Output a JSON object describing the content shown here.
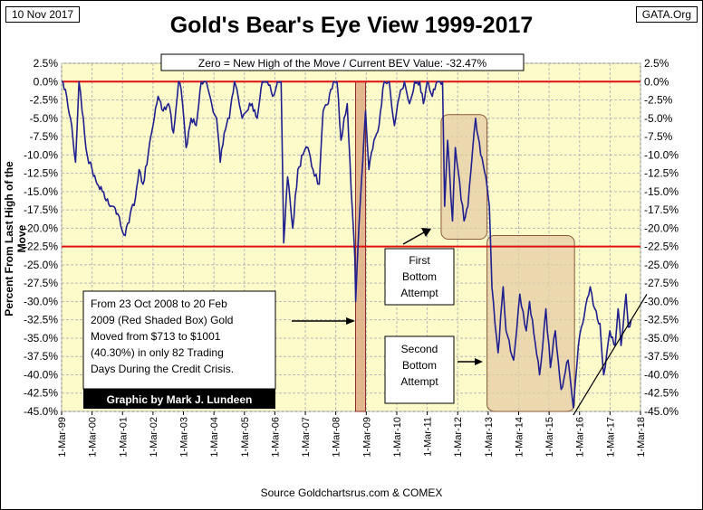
{
  "header": {
    "date": "10 Nov 2017",
    "site": "GATA.Org"
  },
  "chart_data": {
    "type": "line",
    "title": "Gold's Bear's Eye View 1999-2017",
    "ylabel": "Percent  From Last High of the Move",
    "source": "Source Goldchartsrus.com & COMEX",
    "ylim": [
      -45,
      2.5
    ],
    "xlim": [
      "1999-03-01",
      "2018-03-01"
    ],
    "grid": true,
    "y_ticks": [
      "2.5%",
      "0.0%",
      "-2.5%",
      "-5.0%",
      "-7.5%",
      "-10.0%",
      "-12.5%",
      "-15.0%",
      "-17.5%",
      "-20.0%",
      "-22.5%",
      "-25.0%",
      "-27.5%",
      "-30.0%",
      "-32.5%",
      "-35.0%",
      "-37.5%",
      "-40.0%",
      "-42.5%",
      "-45.0%"
    ],
    "x_ticks": [
      "1-Mar-99",
      "1-Mar-00",
      "1-Mar-01",
      "1-Mar-02",
      "1-Mar-03",
      "1-Mar-04",
      "1-Mar-05",
      "1-Mar-06",
      "1-Mar-07",
      "1-Mar-08",
      "1-Mar-09",
      "1-Mar-10",
      "1-Mar-11",
      "1-Mar-12",
      "1-Mar-13",
      "1-Mar-14",
      "1-Mar-15",
      "1-Mar-16",
      "1-Mar-17",
      "1-Mar-18"
    ],
    "reference_lines": [
      0,
      -22.5
    ],
    "legend_text": "Zero = New High of the Move / Current BEV Value:  -32.47%",
    "series": [
      {
        "color": "#1f1f8f",
        "points": [
          [
            "1999-03-01",
            0
          ],
          [
            "1999-05-01",
            -2
          ],
          [
            "1999-07-01",
            -6
          ],
          [
            "1999-08-15",
            -11
          ],
          [
            "1999-09-25",
            0
          ],
          [
            "1999-11-01",
            -4
          ],
          [
            "2000-01-01",
            -10
          ],
          [
            "2000-03-01",
            -12
          ],
          [
            "2000-05-01",
            -14
          ],
          [
            "2000-07-01",
            -15
          ],
          [
            "2000-09-01",
            -16
          ],
          [
            "2000-11-01",
            -17
          ],
          [
            "2001-01-01",
            -18
          ],
          [
            "2001-03-01",
            -20.5
          ],
          [
            "2001-04-01",
            -21
          ],
          [
            "2001-06-01",
            -18
          ],
          [
            "2001-08-01",
            -16
          ],
          [
            "2001-09-15",
            -12
          ],
          [
            "2001-11-01",
            -14
          ],
          [
            "2002-01-01",
            -10
          ],
          [
            "2002-03-01",
            -6
          ],
          [
            "2002-05-01",
            -2
          ],
          [
            "2002-07-01",
            -4
          ],
          [
            "2002-09-01",
            -3
          ],
          [
            "2002-11-01",
            -7
          ],
          [
            "2003-01-01",
            0
          ],
          [
            "2003-02-01",
            -1
          ],
          [
            "2003-04-01",
            -9
          ],
          [
            "2003-06-01",
            -5
          ],
          [
            "2003-08-01",
            -6
          ],
          [
            "2003-10-01",
            0
          ],
          [
            "2003-12-01",
            0
          ],
          [
            "2004-02-01",
            -3
          ],
          [
            "2004-04-01",
            -5
          ],
          [
            "2004-05-15",
            -11
          ],
          [
            "2004-07-01",
            -7
          ],
          [
            "2004-09-01",
            -5
          ],
          [
            "2004-11-01",
            0
          ],
          [
            "2004-12-15",
            -2
          ],
          [
            "2005-02-01",
            -5
          ],
          [
            "2005-04-01",
            -4
          ],
          [
            "2005-06-01",
            -3
          ],
          [
            "2005-08-01",
            -5
          ],
          [
            "2005-10-01",
            0
          ],
          [
            "2005-12-01",
            0
          ],
          [
            "2006-02-01",
            -2
          ],
          [
            "2006-04-01",
            0
          ],
          [
            "2006-05-15",
            0
          ],
          [
            "2006-06-15",
            -22
          ],
          [
            "2006-08-01",
            -13
          ],
          [
            "2006-10-01",
            -20
          ],
          [
            "2006-12-01",
            -12
          ],
          [
            "2007-02-01",
            -10
          ],
          [
            "2007-04-01",
            -9
          ],
          [
            "2007-06-01",
            -12
          ],
          [
            "2007-08-15",
            -14
          ],
          [
            "2007-10-01",
            -4
          ],
          [
            "2007-12-01",
            -3
          ],
          [
            "2008-02-01",
            0
          ],
          [
            "2008-03-15",
            0
          ],
          [
            "2008-05-01",
            -8
          ],
          [
            "2008-07-15",
            -3
          ],
          [
            "2008-09-01",
            -15
          ],
          [
            "2008-10-15",
            -24
          ],
          [
            "2008-10-24",
            -30
          ],
          [
            "2008-12-01",
            -20
          ],
          [
            "2009-02-20",
            -4
          ],
          [
            "2009-04-01",
            -12
          ],
          [
            "2009-06-01",
            -8
          ],
          [
            "2009-08-01",
            -6
          ],
          [
            "2009-10-01",
            0
          ],
          [
            "2009-12-01",
            0
          ],
          [
            "2010-02-01",
            -6
          ],
          [
            "2010-04-01",
            -2
          ],
          [
            "2010-06-01",
            0
          ],
          [
            "2010-08-01",
            -3
          ],
          [
            "2010-10-01",
            0
          ],
          [
            "2010-12-01",
            0
          ],
          [
            "2011-01-15",
            -3
          ],
          [
            "2011-03-01",
            0
          ],
          [
            "2011-05-01",
            -2
          ],
          [
            "2011-07-01",
            0
          ],
          [
            "2011-09-01",
            0
          ],
          [
            "2011-09-26",
            -17
          ],
          [
            "2011-11-01",
            -8
          ],
          [
            "2011-12-29",
            -19
          ],
          [
            "2012-02-01",
            -9
          ],
          [
            "2012-05-15",
            -19
          ],
          [
            "2012-07-01",
            -17
          ],
          [
            "2012-10-01",
            -5
          ],
          [
            "2012-12-01",
            -10
          ],
          [
            "2013-02-01",
            -13
          ],
          [
            "2013-03-15",
            -17
          ],
          [
            "2013-04-15",
            -28
          ],
          [
            "2013-06-28",
            -37
          ],
          [
            "2013-08-28",
            -28
          ],
          [
            "2013-10-01",
            -34
          ],
          [
            "2013-12-31",
            -38
          ],
          [
            "2014-03-15",
            -29
          ],
          [
            "2014-06-01",
            -34
          ],
          [
            "2014-07-10",
            -30
          ],
          [
            "2014-11-07",
            -40
          ],
          [
            "2015-01-22",
            -31
          ],
          [
            "2015-03-17",
            -39
          ],
          [
            "2015-05-15",
            -34
          ],
          [
            "2015-07-24",
            -42
          ],
          [
            "2015-10-15",
            -38
          ],
          [
            "2015-12-17",
            -44.5
          ],
          [
            "2016-02-15",
            -36
          ],
          [
            "2016-07-06",
            -28
          ],
          [
            "2016-09-01",
            -31
          ],
          [
            "2016-11-01",
            -33
          ],
          [
            "2016-12-15",
            -40
          ],
          [
            "2017-02-27",
            -34
          ],
          [
            "2017-05-01",
            -36
          ],
          [
            "2017-06-06",
            -31
          ],
          [
            "2017-07-10",
            -36
          ],
          [
            "2017-09-08",
            -29
          ],
          [
            "2017-10-06",
            -33.5
          ],
          [
            "2017-11-10",
            -32.47
          ]
        ]
      }
    ],
    "shaded_boxes": [
      {
        "x0": "2008-10-23",
        "x1": "2009-02-20",
        "y0": -45,
        "y1": 0,
        "color": "#d9a07a",
        "border": "#8b2a2a"
      },
      {
        "x0": "2011-08-15",
        "x1": "2013-02-15",
        "y0": -21.5,
        "y1": -4.5,
        "color": "#e4cca5",
        "border": "#8b5a3c"
      },
      {
        "x0": "2013-02-15",
        "x1": "2015-12-31",
        "y0": -45.5,
        "y1": -21,
        "color": "#e4cca5",
        "border": "#8b5a3c"
      }
    ],
    "annotations": [
      {
        "text": [
          "From 23 Oct 2008 to 20 Feb",
          "2009 (Red Shaded Box)  Gold",
          "Moved from $713 to $1001",
          "(40.30%) in only 82 Trading",
          "Days During the Credit Crisis."
        ],
        "credit": "Graphic by Mark J. Lundeen"
      },
      {
        "text": [
          "First",
          "Bottom",
          "Attempt"
        ]
      },
      {
        "text": [
          "Second",
          "Bottom",
          "Attempt"
        ]
      }
    ]
  }
}
